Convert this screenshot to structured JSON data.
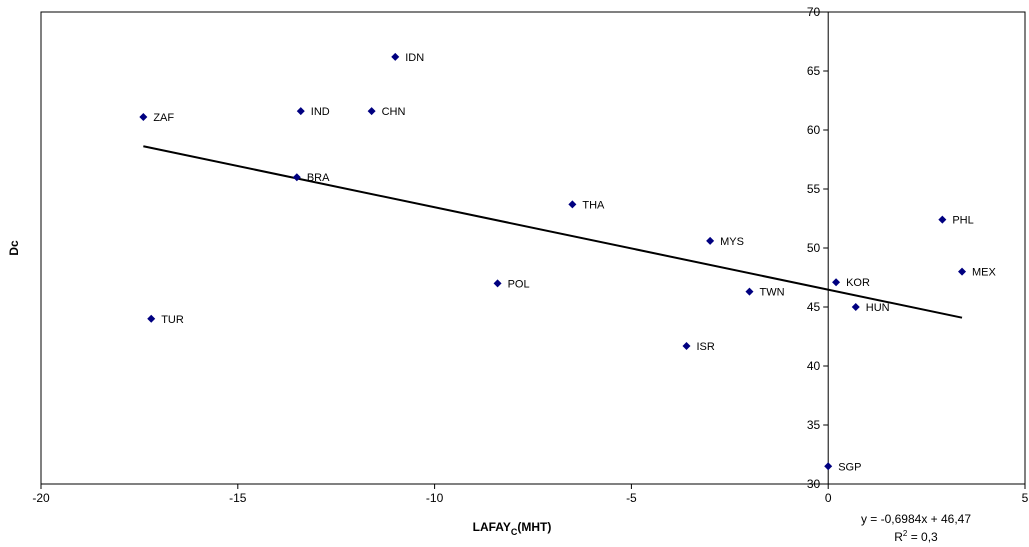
{
  "chart_data": {
    "type": "scatter",
    "xlabel_main": "LAFAY",
    "xlabel_sub": "C",
    "xlabel_suffix": "(MHT)",
    "ylabel": "Dc",
    "xlim": [
      -20,
      5
    ],
    "ylim": [
      30,
      70
    ],
    "x_ticks": [
      -20,
      -15,
      -10,
      -5,
      0,
      5
    ],
    "y_ticks": [
      30,
      35,
      40,
      45,
      50,
      55,
      60,
      65,
      70
    ],
    "grid": false,
    "marker_color": "#000080",
    "points": [
      {
        "label": "ZAF",
        "x": -17.4,
        "y": 61.1
      },
      {
        "label": "IND",
        "x": -13.4,
        "y": 61.6
      },
      {
        "label": "CHN",
        "x": -11.6,
        "y": 61.6
      },
      {
        "label": "IDN",
        "x": -11.0,
        "y": 66.2
      },
      {
        "label": "BRA",
        "x": -13.5,
        "y": 56.0
      },
      {
        "label": "THA",
        "x": -6.5,
        "y": 53.7
      },
      {
        "label": "MYS",
        "x": -3.0,
        "y": 50.6
      },
      {
        "label": "POL",
        "x": -8.4,
        "y": 47.0
      },
      {
        "label": "TUR",
        "x": -17.2,
        "y": 44.0
      },
      {
        "label": "TWN",
        "x": -2.0,
        "y": 46.3
      },
      {
        "label": "ISR",
        "x": -3.6,
        "y": 41.7
      },
      {
        "label": "KOR",
        "x": 0.2,
        "y": 47.1
      },
      {
        "label": "HUN",
        "x": 0.7,
        "y": 45.0
      },
      {
        "label": "PHL",
        "x": 2.9,
        "y": 52.4
      },
      {
        "label": "MEX",
        "x": 3.4,
        "y": 48.0
      },
      {
        "label": "SGP",
        "x": 0.0,
        "y": 31.5
      }
    ],
    "trendline": {
      "slope": -0.6984,
      "intercept": 46.47,
      "x_range": [
        -17.4,
        3.4
      ],
      "equation": "y = -0,6984x + 46,47",
      "r2_prefix": "R",
      "r2_sup": "2",
      "r2_suffix": " = 0,3"
    }
  }
}
